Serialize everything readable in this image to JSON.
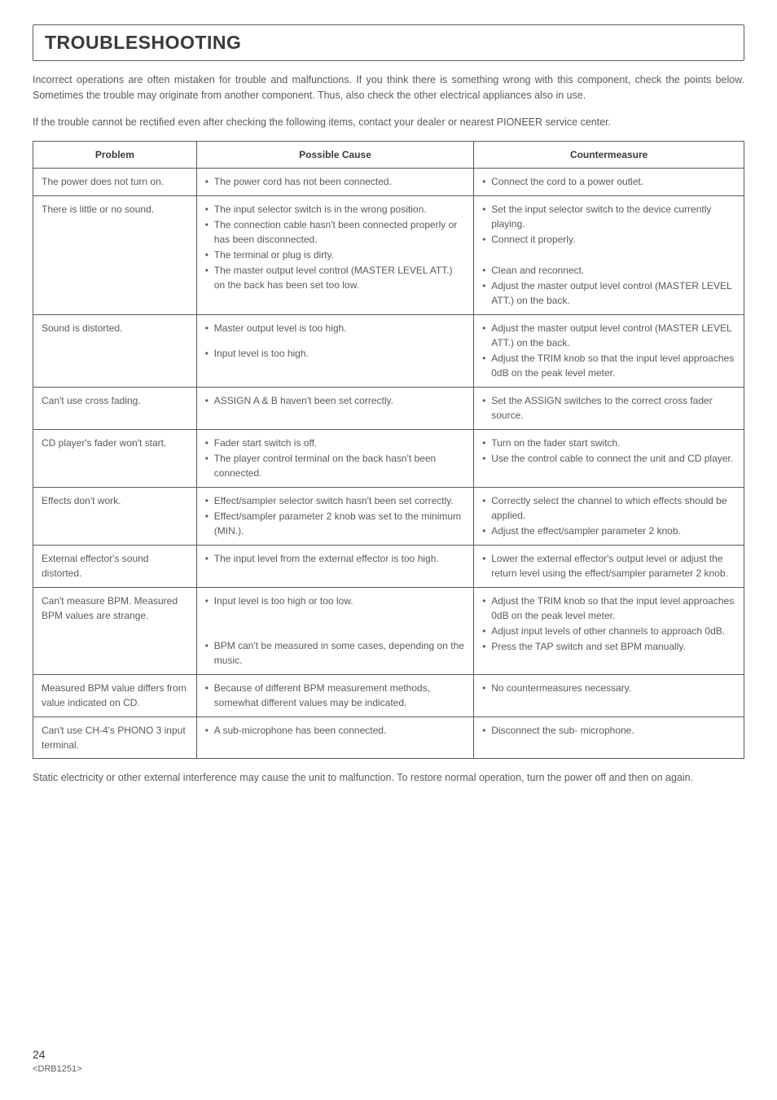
{
  "title": "TROUBLESHOOTING",
  "intro_p1": "Incorrect operations are often mistaken for trouble and malfunctions. If you think there is something wrong with this component, check the points below. Sometimes the trouble may originate from another component. Thus, also check the other electrical appliances also in use.",
  "intro_p2": "If the trouble cannot be rectified even after checking the following items, contact your dealer or nearest PIONEER service center.",
  "headers": {
    "problem": "Problem",
    "cause": "Possible Cause",
    "counter": "Countermeasure"
  },
  "rows": [
    {
      "problem": "The power does not turn on.",
      "cause": [
        "The power cord has not been connected."
      ],
      "counter": [
        "Connect the cord to a power outlet."
      ]
    },
    {
      "problem": "There is little or no sound.",
      "cause": [
        "The input selector switch is in the wrong position.",
        "The connection cable hasn't been connected properly or has been disconnected.",
        "The terminal or plug is dirty.",
        "The master output level control (MASTER LEVEL ATT.) on the back has been set too low."
      ],
      "counter": [
        "Set the input selector switch to the device currently playing.",
        "Connect it properly.",
        " ",
        "Clean and reconnect.",
        "Adjust the master output level control (MASTER LEVEL ATT.) on the back."
      ]
    },
    {
      "problem": "Sound is distorted.",
      "cause": [
        "Master output level is too high.",
        " ",
        "Input level is too high."
      ],
      "counter": [
        "Adjust the master output level control (MASTER LEVEL ATT.) on the back.",
        "Adjust the TRIM knob so that the input level approaches 0dB on the peak level meter."
      ]
    },
    {
      "problem": "Can't use cross fading.",
      "cause": [
        "ASSIGN A & B haven't been set correctly."
      ],
      "counter": [
        "Set the ASSIGN switches to the correct cross fader source."
      ]
    },
    {
      "problem": "CD player's fader won't start.",
      "cause": [
        "Fader start switch is off.",
        "The player control terminal on the back hasn't been connected."
      ],
      "counter": [
        "Turn on the fader start switch.",
        "Use the control cable to connect the unit and CD player."
      ]
    },
    {
      "problem": "Effects don't work.",
      "cause": [
        "Effect/sampler selector switch hasn't been set correctly.",
        "Effect/sampler parameter 2 knob was set to the minimum (MIN.)."
      ],
      "counter": [
        "Correctly select the channel to which effects should be applied.",
        "Adjust the effect/sampler parameter 2 knob."
      ]
    },
    {
      "problem": "External effector's sound distorted.",
      "cause": [
        "The input level from the external effector is too high."
      ],
      "counter": [
        "Lower the external effector's output level or adjust the return level using the effect/sampler parameter 2 knob."
      ]
    },
    {
      "problem": "Can't measure BPM. Measured BPM values are strange.",
      "cause": [
        "Input level is too high or too low.",
        " ",
        " ",
        " ",
        "BPM can't be measured in some cases, depending on the music."
      ],
      "counter": [
        "Adjust the TRIM knob so that the input level approaches 0dB on the peak level meter.",
        "Adjust input levels of other channels to approach 0dB.",
        "Press the TAP switch and set BPM manually."
      ]
    },
    {
      "problem": "Measured BPM value differs from value indicated on CD.",
      "cause": [
        "Because of different BPM measurement methods, somewhat different values may be indicated."
      ],
      "counter": [
        "No countermeasures necessary."
      ]
    },
    {
      "problem": "Can't use CH-4's PHONO 3 input terminal.",
      "cause": [
        "A sub-microphone has been connected."
      ],
      "counter": [
        "Disconnect the sub- microphone."
      ]
    }
  ],
  "footnote": "Static electricity or other external interference may cause the unit to malfunction. To restore normal operation, turn the power off and then on again.",
  "page_number": "24",
  "doc_ref": "<DRB1251>"
}
